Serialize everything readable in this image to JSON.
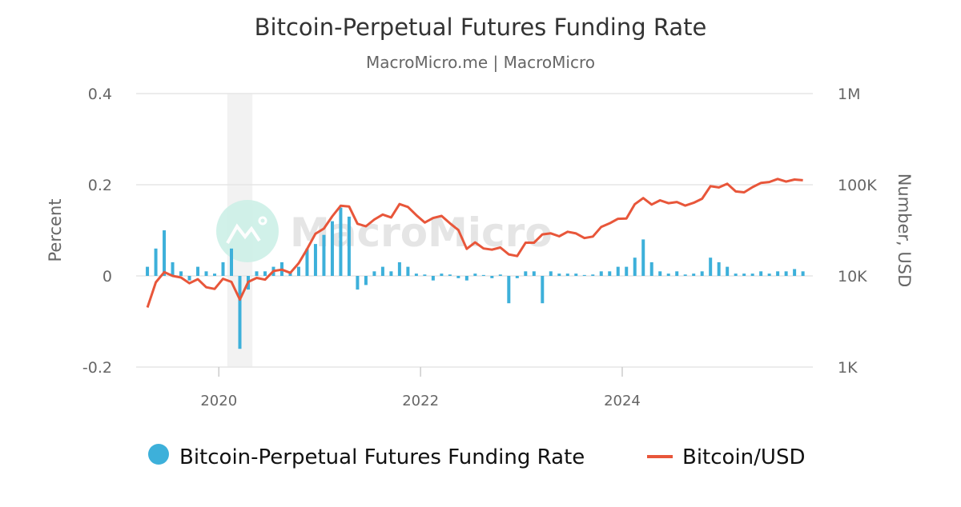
{
  "chart_data": {
    "type": "bar+line",
    "title": "Bitcoin-Perpetual Futures Funding Rate",
    "subtitle": "MacroMicro.me | MacroMicro",
    "watermark": "MacroMicro",
    "y_left": {
      "label": "Percent",
      "ylim": [
        -0.2,
        0.4
      ],
      "ticks": [
        "0.4",
        "0.2",
        "0",
        "-0.2"
      ],
      "tick_values": [
        0.4,
        0.2,
        0,
        -0.2
      ]
    },
    "y_right": {
      "label": "Number, USD",
      "scale": "log",
      "ylim": [
        1000,
        1000000
      ],
      "ticks": [
        "1M",
        "100K",
        "10K",
        "1K"
      ],
      "tick_values": [
        1000000,
        100000,
        10000,
        1000
      ]
    },
    "x_ticks": [
      "2020",
      "2022",
      "2024"
    ],
    "x_tick_values": [
      2020,
      2022,
      2024
    ],
    "xlim": [
      2019.18,
      2025.89
    ],
    "grid": "horizontal",
    "legend_position": "bottom",
    "shaded_period": [
      "2020-02",
      "2020-04"
    ],
    "colors": {
      "funding": "#3db0da",
      "btc": "#e8563a",
      "shade": "#f2f2f2",
      "grid": "#e6e6e6"
    },
    "x": [
      "2019-04",
      "2019-05",
      "2019-06",
      "2019-07",
      "2019-08",
      "2019-09",
      "2019-10",
      "2019-11",
      "2019-12",
      "2020-01",
      "2020-02",
      "2020-03",
      "2020-04",
      "2020-05",
      "2020-06",
      "2020-07",
      "2020-08",
      "2020-09",
      "2020-10",
      "2020-11",
      "2020-12",
      "2021-01",
      "2021-02",
      "2021-03",
      "2021-04",
      "2021-05",
      "2021-06",
      "2021-07",
      "2021-08",
      "2021-09",
      "2021-10",
      "2021-11",
      "2021-12",
      "2022-01",
      "2022-02",
      "2022-03",
      "2022-04",
      "2022-05",
      "2022-06",
      "2022-07",
      "2022-08",
      "2022-09",
      "2022-10",
      "2022-11",
      "2022-12",
      "2023-01",
      "2023-02",
      "2023-03",
      "2023-04",
      "2023-05",
      "2023-06",
      "2023-07",
      "2023-08",
      "2023-09",
      "2023-10",
      "2023-11",
      "2023-12",
      "2024-01",
      "2024-02",
      "2024-03",
      "2024-04",
      "2024-05",
      "2024-06",
      "2024-07",
      "2024-08",
      "2024-09",
      "2024-10",
      "2024-11",
      "2024-12",
      "2025-01",
      "2025-02",
      "2025-03",
      "2025-04",
      "2025-05",
      "2025-06",
      "2025-07",
      "2025-08",
      "2025-09",
      "2025-10"
    ],
    "series": [
      {
        "name": "Bitcoin-Perpetual Futures Funding Rate",
        "type": "bar",
        "axis": "left",
        "values": [
          0.02,
          0.06,
          0.1,
          0.03,
          0.01,
          -0.01,
          0.02,
          0.01,
          0.005,
          0.03,
          0.06,
          -0.16,
          -0.03,
          0.01,
          0.01,
          0.02,
          0.03,
          0.01,
          0.02,
          0.06,
          0.07,
          0.09,
          0.12,
          0.15,
          0.13,
          -0.03,
          -0.02,
          0.01,
          0.02,
          0.01,
          0.03,
          0.02,
          0.005,
          0.003,
          -0.01,
          0.005,
          0.003,
          -0.005,
          -0.01,
          0.005,
          0.002,
          -0.005,
          0.003,
          -0.06,
          -0.005,
          0.01,
          0.01,
          -0.06,
          0.01,
          0.005,
          0.005,
          0.005,
          0.002,
          0.003,
          0.01,
          0.01,
          0.02,
          0.02,
          0.04,
          0.08,
          0.03,
          0.01,
          0.005,
          0.01,
          0.003,
          0.005,
          0.01,
          0.04,
          0.03,
          0.02,
          0.005,
          0.005,
          0.005,
          0.01,
          0.005,
          0.01,
          0.01,
          0.015,
          0.01
        ]
      },
      {
        "name": "Bitcoin/USD",
        "type": "line",
        "axis": "right",
        "values": [
          4500,
          8500,
          11000,
          10000,
          9600,
          8300,
          9200,
          7500,
          7200,
          9300,
          8600,
          5500,
          8600,
          9500,
          9100,
          11300,
          11700,
          10800,
          13800,
          19700,
          29000,
          33000,
          45000,
          58800,
          57700,
          37300,
          35000,
          41500,
          47100,
          43800,
          61300,
          57000,
          46300,
          38500,
          43200,
          45500,
          37700,
          31800,
          19800,
          23300,
          20000,
          19400,
          20500,
          17200,
          16500,
          23100,
          23100,
          28500,
          29300,
          27200,
          30500,
          29200,
          26000,
          27000,
          34500,
          37700,
          42300,
          42600,
          61200,
          71300,
          60600,
          67500,
          62700,
          64600,
          59000,
          63300,
          70200,
          96400,
          93400,
          102400,
          84400,
          82500,
          94200,
          104600,
          107100,
          115700,
          108200,
          114000,
          112000
        ]
      }
    ]
  }
}
